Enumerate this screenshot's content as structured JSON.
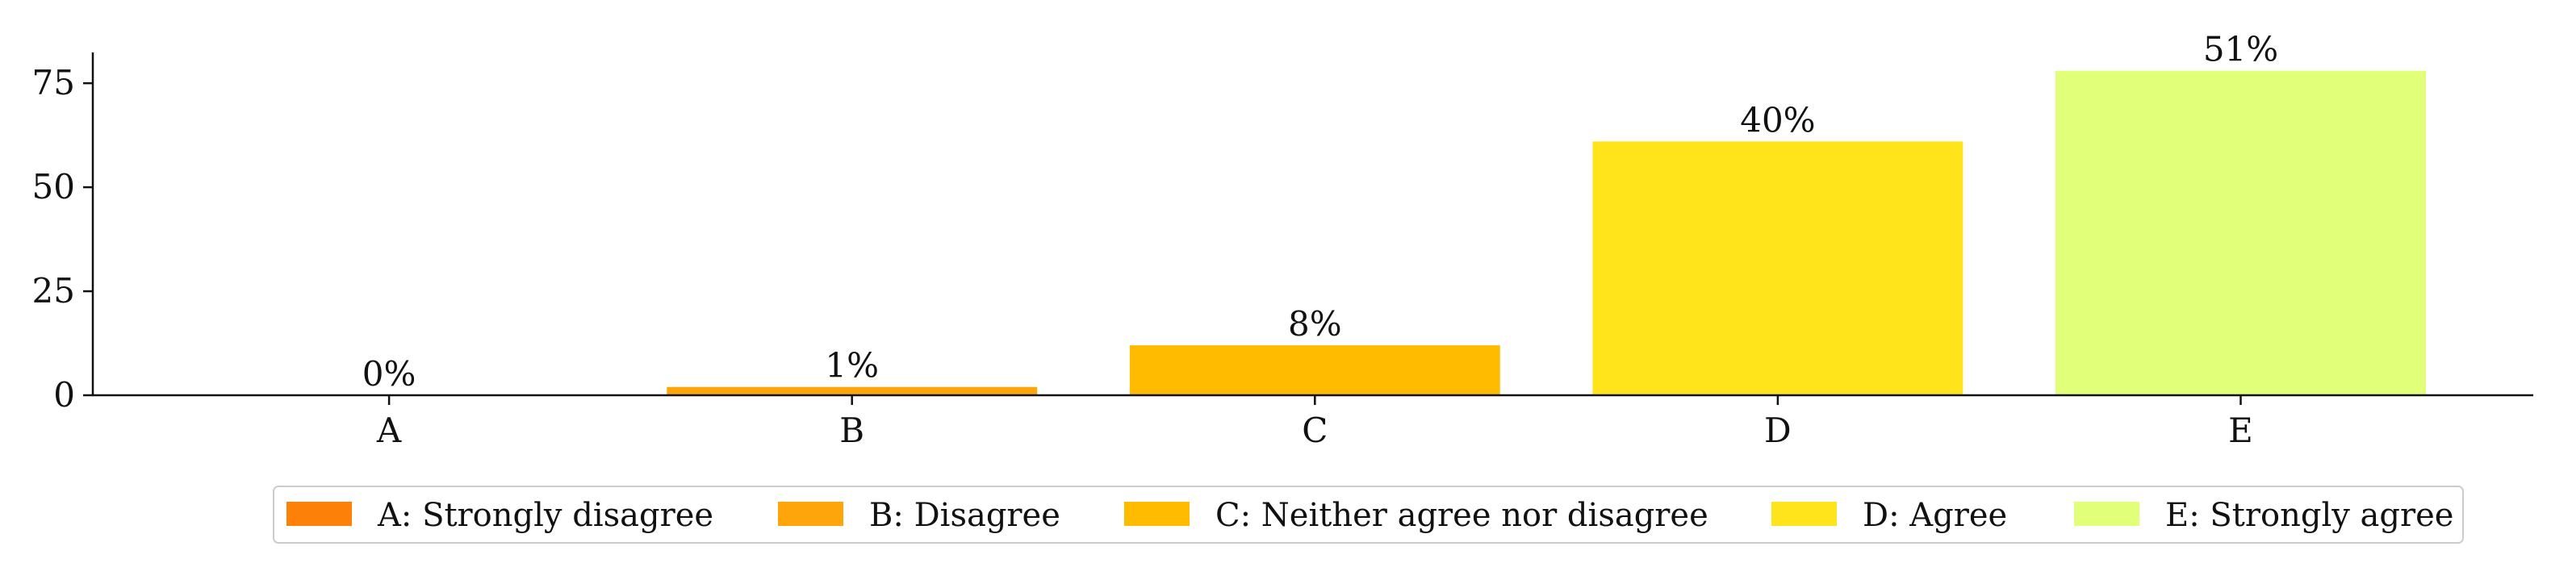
{
  "chart_data": {
    "type": "bar",
    "categories": [
      "A",
      "B",
      "C",
      "D",
      "E"
    ],
    "values": [
      0,
      2,
      12,
      61,
      78
    ],
    "value_labels": [
      "0%",
      "1%",
      "8%",
      "40%",
      "51%"
    ],
    "colors": [
      "#fd8008",
      "#fea50c",
      "#ffbb00",
      "#ffe41c",
      "#e1ff78"
    ],
    "legend": [
      "A: Strongly disagree",
      "B: Disagree",
      "C: Neither agree nor disagree",
      "D: Agree",
      "E: Strongly agree"
    ],
    "ylim": [
      0,
      82.4
    ],
    "yticks": [
      0,
      25,
      50,
      75
    ],
    "grid": false
  }
}
